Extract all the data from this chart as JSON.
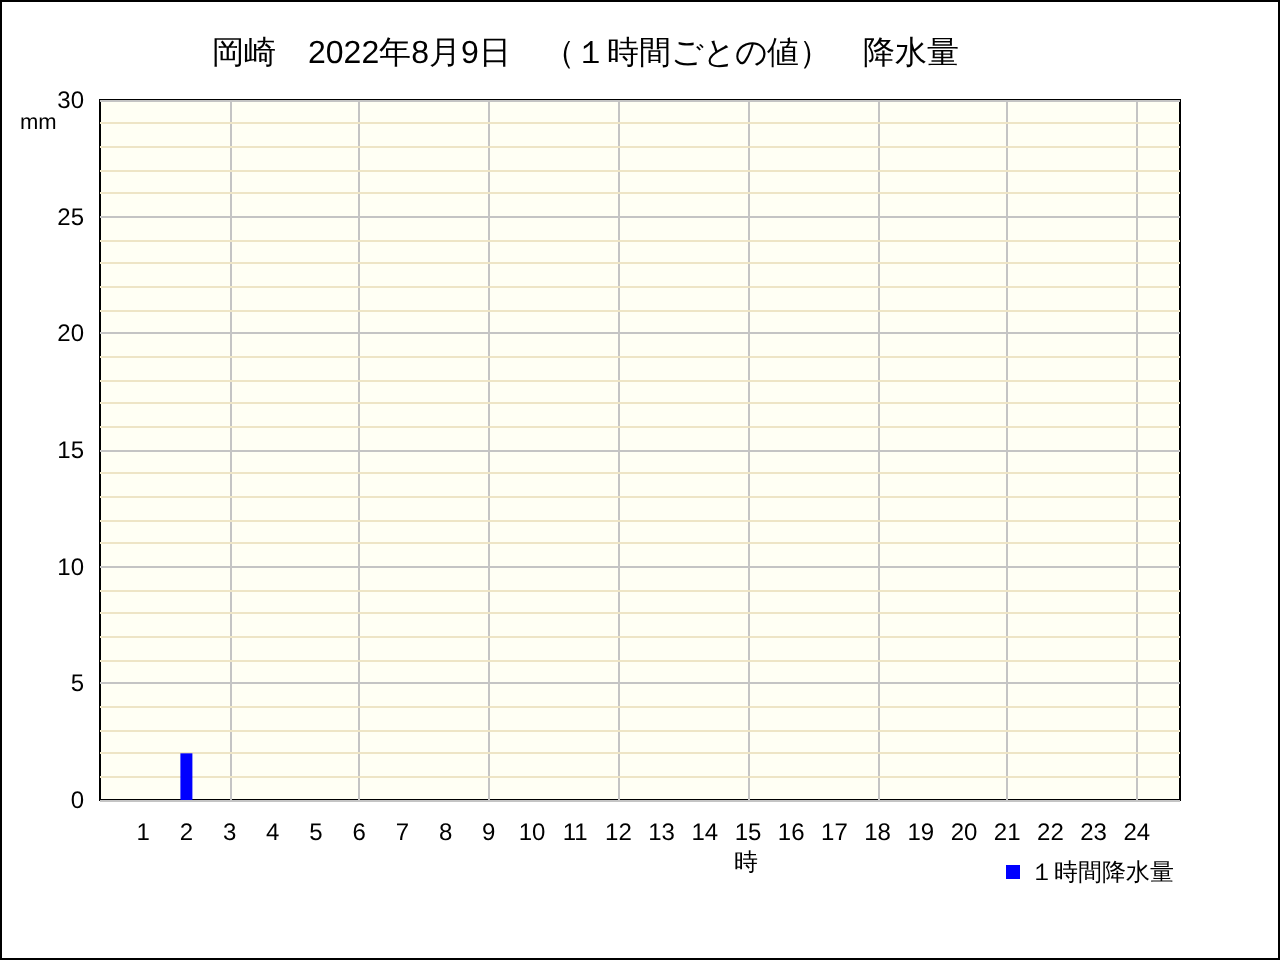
{
  "chart_data": {
    "type": "bar",
    "title": "岡崎　2022年8月9日　（１時間ごとの値）　降水量",
    "xlabel": "時",
    "ylabel": "mm",
    "x": [
      1,
      2,
      3,
      4,
      5,
      6,
      7,
      8,
      9,
      10,
      11,
      12,
      13,
      14,
      15,
      16,
      17,
      18,
      19,
      20,
      21,
      22,
      23,
      24
    ],
    "series": [
      {
        "name": "１時間降水量",
        "color": "#0000ff",
        "values": [
          0,
          2,
          0,
          0,
          0,
          0,
          0,
          0,
          0,
          0,
          0,
          0,
          0,
          0,
          0,
          0,
          0,
          0,
          0,
          0,
          0,
          0,
          0,
          0
        ]
      }
    ],
    "xlim": [
      0,
      25
    ],
    "xticks": [
      1,
      2,
      3,
      4,
      5,
      6,
      7,
      8,
      9,
      10,
      11,
      12,
      13,
      14,
      15,
      16,
      17,
      18,
      19,
      20,
      21,
      22,
      23,
      24
    ],
    "ylim": [
      0,
      30
    ],
    "yticks": [
      0,
      {
        "value": 1,
        "label": null
      },
      {
        "value": 2,
        "label": null
      },
      {
        "value": 3,
        "label": null
      },
      {
        "value": 4,
        "label": null
      },
      5,
      {
        "value": 6,
        "label": null
      },
      {
        "value": 7,
        "label": null
      },
      {
        "value": 8,
        "label": null
      },
      {
        "value": 9,
        "label": null
      },
      10,
      {
        "value": 11,
        "label": null
      },
      {
        "value": 12,
        "label": null
      },
      {
        "value": 13,
        "label": null
      },
      {
        "value": 14,
        "label": null
      },
      15,
      {
        "value": 16,
        "label": null
      },
      {
        "value": 17,
        "label": null
      },
      {
        "value": 18,
        "label": null
      },
      {
        "value": 19,
        "label": null
      },
      20,
      {
        "value": 21,
        "label": null
      },
      {
        "value": 22,
        "label": null
      },
      {
        "value": 23,
        "label": null
      },
      {
        "value": 24,
        "label": null
      },
      25,
      {
        "value": 26,
        "label": null
      },
      {
        "value": 27,
        "label": null
      },
      {
        "value": 28,
        "label": null
      },
      {
        "value": 29,
        "label": null
      },
      30
    ],
    "grid": true,
    "legend": "bottom right"
  }
}
